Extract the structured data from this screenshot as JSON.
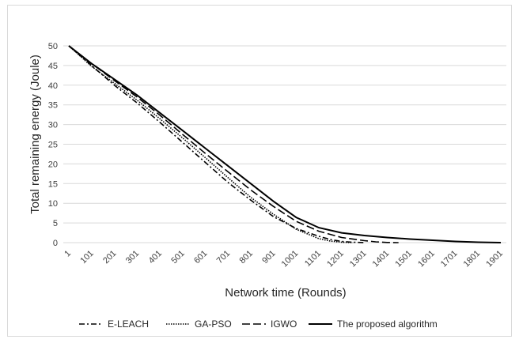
{
  "chart_data": {
    "type": "line",
    "title": "",
    "xlabel": "Network time (Rounds)",
    "ylabel": "Total remaining energy (Joule)",
    "x_ticks": [
      "1",
      "101",
      "201",
      "301",
      "401",
      "501",
      "601",
      "701",
      "801",
      "901",
      "1001",
      "1101",
      "1201",
      "1301",
      "1401",
      "1501",
      "1601",
      "1701",
      "1801",
      "1901"
    ],
    "ylim": [
      0,
      50
    ],
    "y_ticks": [
      0,
      5,
      10,
      15,
      20,
      25,
      30,
      35,
      40,
      45,
      50
    ],
    "grid": "horizontal",
    "legend_position": "bottom",
    "series": [
      {
        "name": "E-LEACH",
        "dash": "dash-dot",
        "x": [
          1,
          101,
          201,
          301,
          401,
          501,
          601,
          701,
          801,
          901,
          1001,
          1101,
          1151,
          1201,
          1251,
          1301
        ],
        "y": [
          50,
          45,
          40,
          35.5,
          30.6,
          25.5,
          20.4,
          15.3,
          10.8,
          6.6,
          3.6,
          1.6,
          0.8,
          0.3,
          0.1,
          0
        ]
      },
      {
        "name": "GA-PSO",
        "dash": "dotted",
        "x": [
          1,
          101,
          201,
          301,
          401,
          501,
          601,
          701,
          801,
          901,
          1001,
          1101,
          1151,
          1201,
          1251
        ],
        "y": [
          50,
          44.8,
          40.5,
          36.2,
          31.5,
          26.6,
          21.6,
          16.5,
          11.5,
          7.2,
          3.4,
          1.0,
          0.4,
          0.1,
          0
        ]
      },
      {
        "name": "IGWO",
        "dash": "dashed",
        "x": [
          1,
          101,
          201,
          301,
          401,
          501,
          601,
          701,
          801,
          901,
          1001,
          1101,
          1201,
          1301,
          1351,
          1401,
          1451
        ],
        "y": [
          50,
          45.5,
          41.2,
          37.0,
          32.4,
          27.5,
          22.7,
          18.0,
          13.4,
          9.2,
          5.4,
          2.9,
          1.3,
          0.5,
          0.2,
          0.05,
          0
        ]
      },
      {
        "name": "The proposed algorithm",
        "dash": "solid",
        "x": [
          1,
          101,
          201,
          301,
          401,
          501,
          601,
          701,
          801,
          901,
          1001,
          1101,
          1201,
          1301,
          1401,
          1501,
          1601,
          1701,
          1801,
          1901
        ],
        "y": [
          50,
          45.5,
          41.5,
          37.5,
          33.0,
          28.5,
          24.0,
          19.5,
          15.0,
          10.5,
          6.4,
          3.8,
          2.5,
          1.8,
          1.3,
          0.9,
          0.6,
          0.3,
          0.1,
          0
        ]
      }
    ]
  }
}
